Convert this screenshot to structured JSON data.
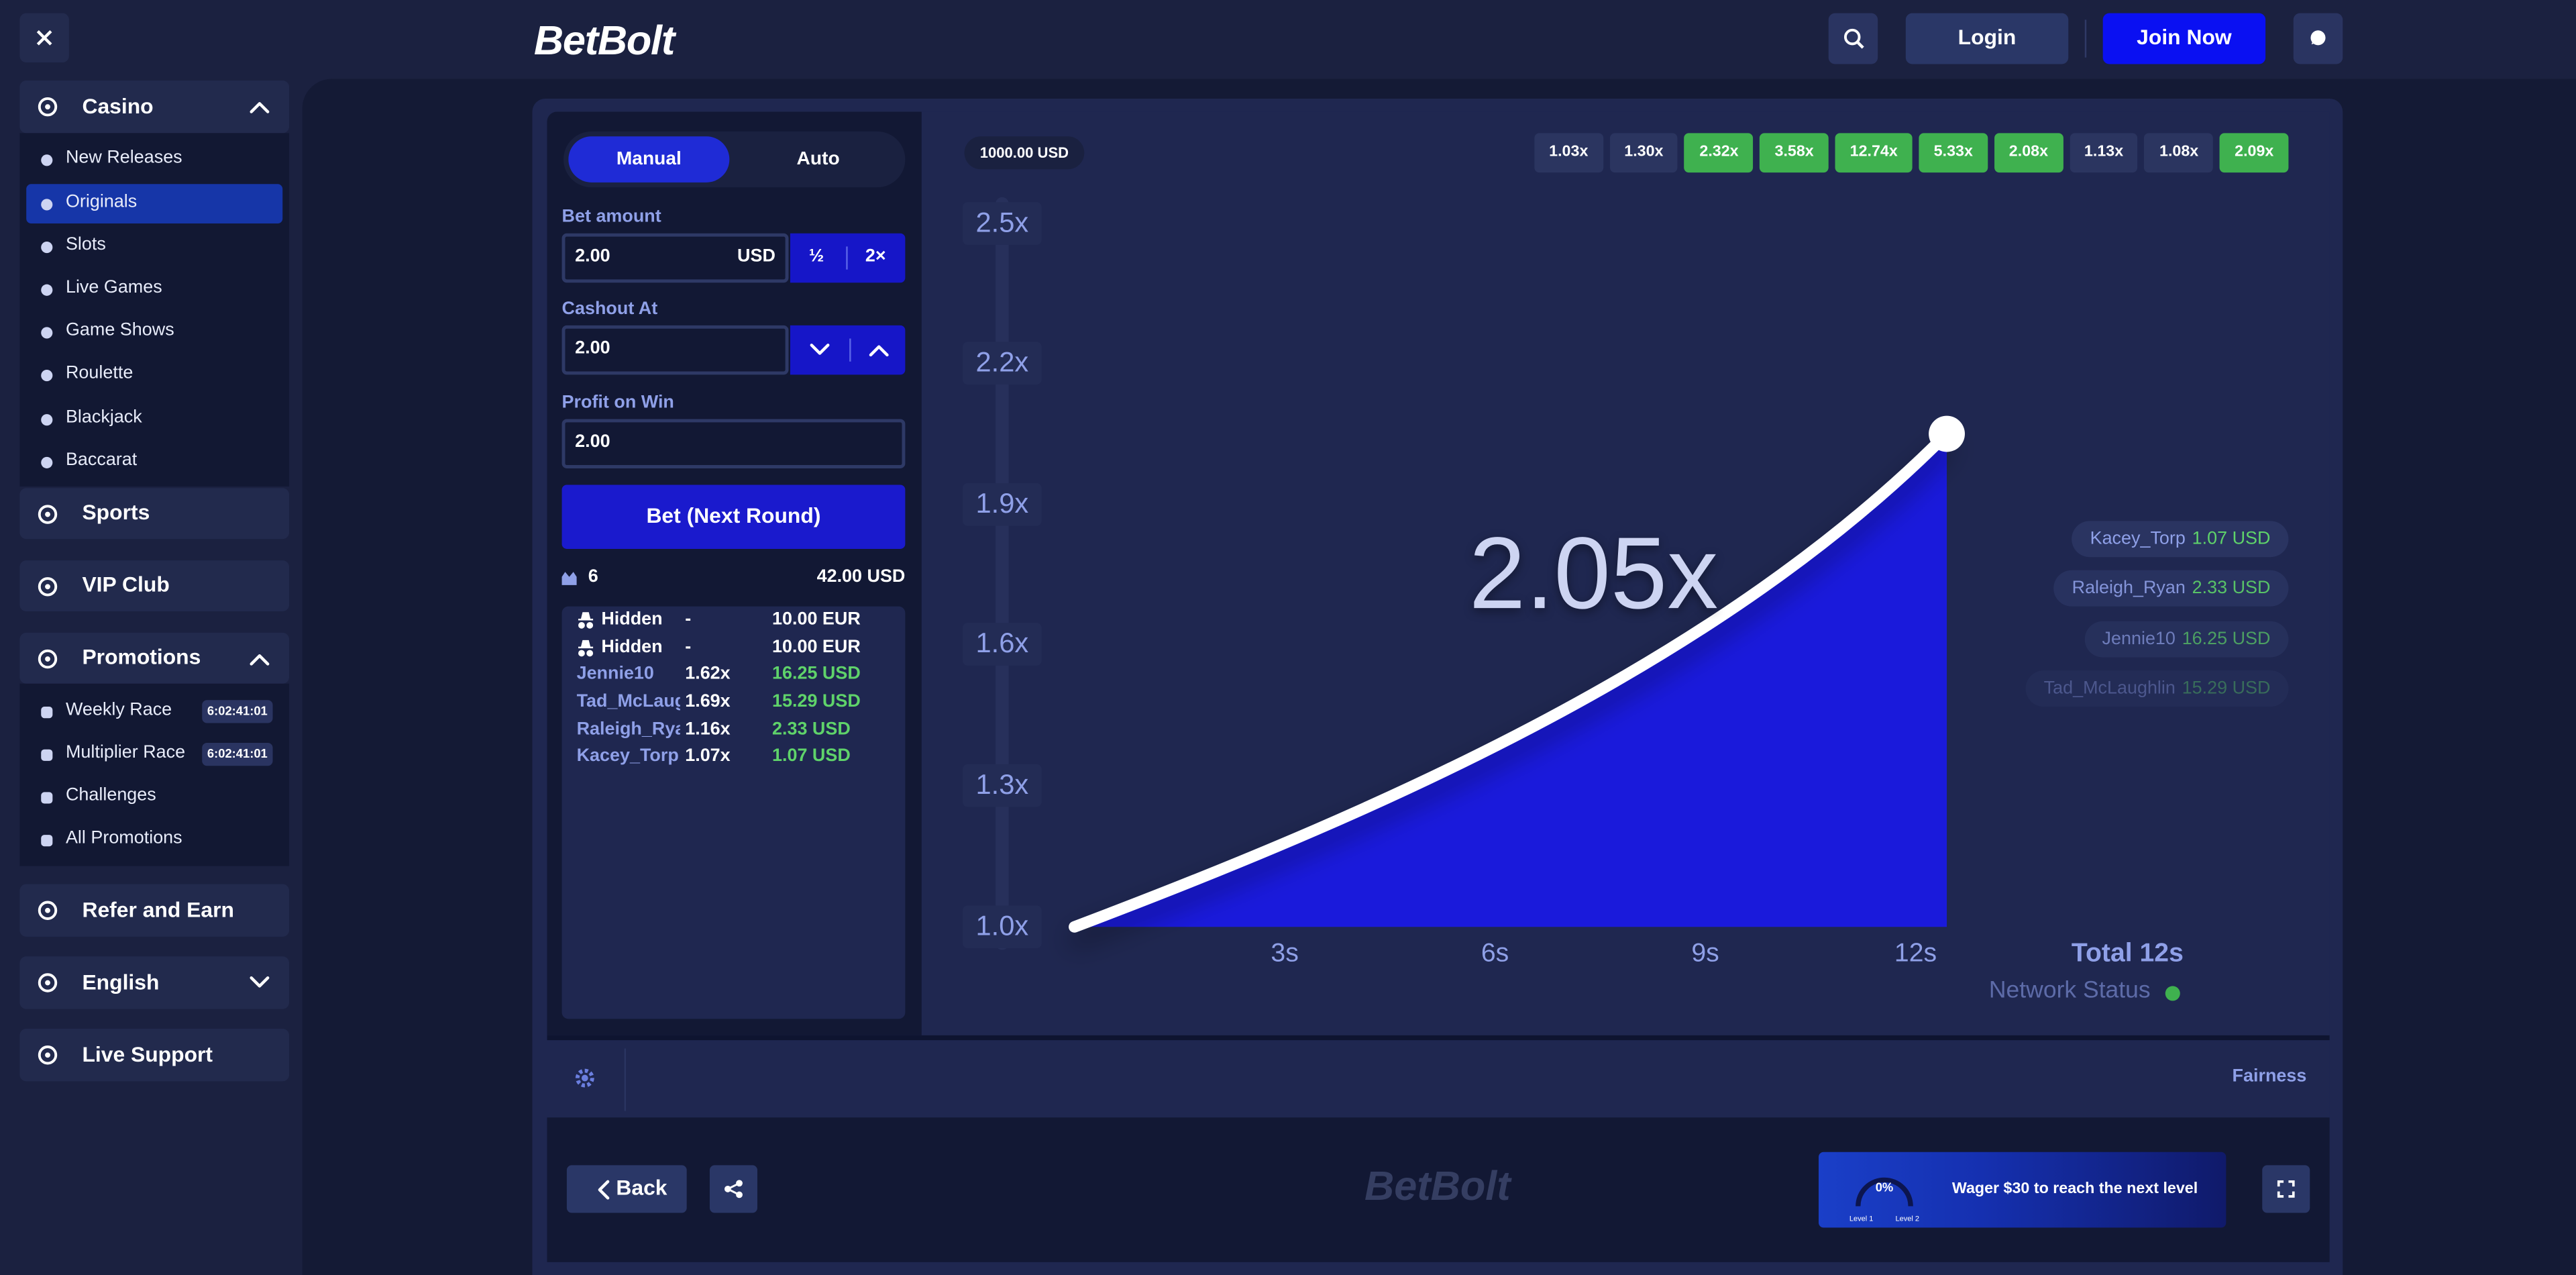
{
  "header": {
    "logo": "BetBolt",
    "login": "Login",
    "join": "Join Now"
  },
  "sidebar": {
    "casino": {
      "title": "Casino",
      "items": [
        "New Releases",
        "Originals",
        "Slots",
        "Live Games",
        "Game Shows",
        "Roulette",
        "Blackjack",
        "Baccarat"
      ]
    },
    "sports": "Sports",
    "vip": "VIP Club",
    "promotions": {
      "title": "Promotions",
      "items": [
        {
          "label": "Weekly Race",
          "timer": "6:02:41:01"
        },
        {
          "label": "Multiplier Race",
          "timer": "6:02:41:01"
        },
        {
          "label": "Challenges"
        },
        {
          "label": "All Promotions"
        }
      ]
    },
    "refer": "Refer and Earn",
    "language": "English",
    "support": "Live Support"
  },
  "bet_panel": {
    "tabs": [
      "Manual",
      "Auto"
    ],
    "bet_amount": {
      "label": "Bet amount",
      "value": "2.00",
      "currency": "USD",
      "half": "½",
      "double": "2×"
    },
    "cashout": {
      "label": "Cashout At",
      "value": "2.00"
    },
    "profit": {
      "label": "Profit on Win",
      "value": "2.00"
    },
    "button": "Bet (Next Round)",
    "players": "6",
    "total": "42.00 USD",
    "bets": [
      [
        "Hidden",
        "-",
        "10.00 EUR"
      ],
      [
        "Hidden",
        "-",
        "10.00 EUR"
      ],
      [
        "Jennie10",
        "1.62x",
        "16.25 USD"
      ],
      [
        "Tad_McLaughlin",
        "1.69x",
        "15.29 USD"
      ],
      [
        "Raleigh_Ryan",
        "1.16x",
        "2.33 USD"
      ],
      [
        "Kacey_Torp",
        "1.07x",
        "1.07 USD"
      ]
    ]
  },
  "game": {
    "balance": "1000.00 USD",
    "history": [
      {
        "label": "1.03x",
        "color": "#2b3560"
      },
      {
        "label": "1.30x",
        "color": "#2b3560"
      },
      {
        "label": "2.32x",
        "color": "#3fb14f"
      },
      {
        "label": "3.58x",
        "color": "#3fb14f"
      },
      {
        "label": "12.74x",
        "color": "#3fb14f"
      },
      {
        "label": "5.33x",
        "color": "#3fb14f"
      },
      {
        "label": "2.08x",
        "color": "#3fb14f"
      },
      {
        "label": "1.13x",
        "color": "#2b3560"
      },
      {
        "label": "1.08x",
        "color": "#2b3560"
      },
      {
        "label": "2.09x",
        "color": "#3fb14f"
      }
    ],
    "multiplier": "2.05x",
    "y_labels": [
      "2.5x",
      "2.2x",
      "1.9x",
      "1.6x",
      "1.3x",
      "1.0x"
    ],
    "x_labels": [
      "3s",
      "6s",
      "9s",
      "12s"
    ],
    "total": "Total 12s",
    "network": "Network Status",
    "cashouts": [
      {
        "name": "Kacey_Torp",
        "amount": "1.07 USD"
      },
      {
        "name": "Raleigh_Ryan",
        "amount": "2.33 USD"
      },
      {
        "name": "Jennie10",
        "amount": "16.25 USD"
      },
      {
        "name": "Tad_McLaughlin",
        "amount": "15.29 USD"
      }
    ]
  },
  "footer": {
    "fairness": "Fairness",
    "back": "Back",
    "logo": "BetBolt",
    "progress": "0%",
    "level1": "Level 1",
    "level2": "Level 2",
    "wager": "Wager $30 to reach the next level"
  }
}
